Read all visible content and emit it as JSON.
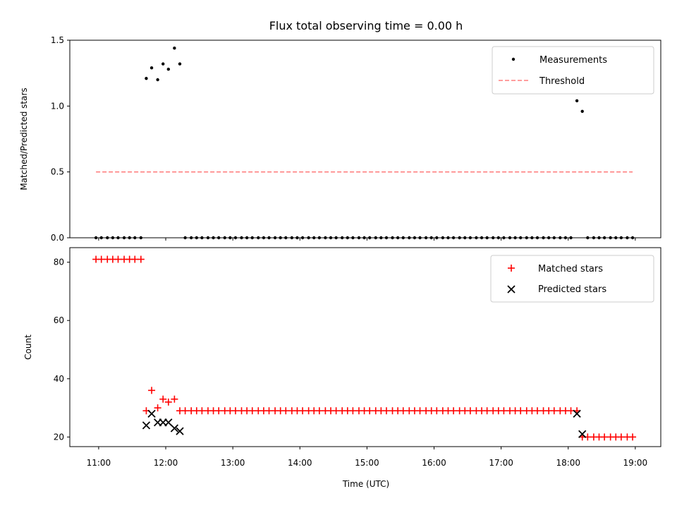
{
  "chart_data": [
    {
      "type": "scatter",
      "title": "Flux total observing time = 0.00 h",
      "xlabel": "",
      "ylabel": "Matched/Predicted stars",
      "xlim": [
        10.57,
        19.38
      ],
      "ylim": [
        0.0,
        1.5
      ],
      "yticks": [
        0.0,
        0.5,
        1.0,
        1.5
      ],
      "ytick_labels": [
        "0.0",
        "0.5",
        "1.0",
        "1.5"
      ],
      "legend": {
        "placement": "top-right"
      },
      "series": [
        {
          "name": "Measurements",
          "marker": "dot",
          "color": "#000000",
          "x": [
            10.96,
            11.04,
            11.13,
            11.21,
            11.29,
            11.38,
            11.46,
            11.54,
            11.63,
            11.71,
            11.79,
            11.88,
            11.96,
            12.04,
            12.13,
            12.21,
            12.29,
            12.38,
            12.46,
            12.54,
            12.63,
            12.71,
            12.79,
            12.88,
            12.96,
            13.04,
            13.13,
            13.21,
            13.29,
            13.38,
            13.46,
            13.54,
            13.63,
            13.71,
            13.79,
            13.88,
            13.96,
            14.04,
            14.13,
            14.21,
            14.29,
            14.38,
            14.46,
            14.54,
            14.63,
            14.71,
            14.79,
            14.88,
            14.96,
            15.04,
            15.13,
            15.21,
            15.29,
            15.38,
            15.46,
            15.54,
            15.63,
            15.71,
            15.79,
            15.88,
            15.96,
            16.04,
            16.13,
            16.21,
            16.29,
            16.38,
            16.46,
            16.54,
            16.63,
            16.71,
            16.79,
            16.88,
            16.96,
            17.04,
            17.13,
            17.21,
            17.29,
            17.38,
            17.46,
            17.54,
            17.63,
            17.71,
            17.79,
            17.88,
            17.96,
            18.04,
            18.13,
            18.21,
            18.29,
            18.38,
            18.46,
            18.54,
            18.63,
            18.71,
            18.79,
            18.88,
            18.96
          ],
          "y": [
            0,
            0,
            0,
            0,
            0,
            0,
            0,
            0,
            0,
            1.21,
            1.29,
            1.2,
            1.32,
            1.28,
            1.44,
            1.32,
            0,
            0,
            0,
            0,
            0,
            0,
            0,
            0,
            0,
            0,
            0,
            0,
            0,
            0,
            0,
            0,
            0,
            0,
            0,
            0,
            0,
            0,
            0,
            0,
            0,
            0,
            0,
            0,
            0,
            0,
            0,
            0,
            0,
            0,
            0,
            0,
            0,
            0,
            0,
            0,
            0,
            0,
            0,
            0,
            0,
            0,
            0,
            0,
            0,
            0,
            0,
            0,
            0,
            0,
            0,
            0,
            0,
            0,
            0,
            0,
            0,
            0,
            0,
            0,
            0,
            0,
            0,
            0,
            0,
            0,
            1.04,
            0.96,
            0,
            0,
            0,
            0,
            0,
            0,
            0,
            0,
            0
          ]
        },
        {
          "name": "Threshold",
          "marker": "dashed-line",
          "color": "#ff7f7f",
          "x": [
            10.96,
            18.96
          ],
          "y": [
            0.5,
            0.5
          ]
        }
      ]
    },
    {
      "type": "scatter",
      "title": "",
      "xlabel": "Time (UTC)",
      "ylabel": "Count",
      "xlim": [
        10.57,
        19.38
      ],
      "ylim": [
        16.7,
        85.0
      ],
      "xticks": [
        11,
        12,
        13,
        14,
        15,
        16,
        17,
        18,
        19
      ],
      "xtick_labels": [
        "11:00",
        "12:00",
        "13:00",
        "14:00",
        "15:00",
        "16:00",
        "17:00",
        "18:00",
        "19:00"
      ],
      "yticks": [
        20,
        40,
        60,
        80
      ],
      "ytick_labels": [
        "20",
        "40",
        "60",
        "80"
      ],
      "legend": {
        "placement": "top-right"
      },
      "series": [
        {
          "name": "Matched stars",
          "marker": "plus",
          "color": "#ff0000",
          "x": [
            10.96,
            11.04,
            11.13,
            11.21,
            11.29,
            11.38,
            11.46,
            11.54,
            11.63,
            11.71,
            11.79,
            11.88,
            11.96,
            12.04,
            12.13,
            12.21,
            12.29,
            12.38,
            12.46,
            12.54,
            12.63,
            12.71,
            12.79,
            12.88,
            12.96,
            13.04,
            13.13,
            13.21,
            13.29,
            13.38,
            13.46,
            13.54,
            13.63,
            13.71,
            13.79,
            13.88,
            13.96,
            14.04,
            14.13,
            14.21,
            14.29,
            14.38,
            14.46,
            14.54,
            14.63,
            14.71,
            14.79,
            14.88,
            14.96,
            15.04,
            15.13,
            15.21,
            15.29,
            15.38,
            15.46,
            15.54,
            15.63,
            15.71,
            15.79,
            15.88,
            15.96,
            16.04,
            16.13,
            16.21,
            16.29,
            16.38,
            16.46,
            16.54,
            16.63,
            16.71,
            16.79,
            16.88,
            16.96,
            17.04,
            17.13,
            17.21,
            17.29,
            17.38,
            17.46,
            17.54,
            17.63,
            17.71,
            17.79,
            17.88,
            17.96,
            18.04,
            18.13,
            18.21,
            18.29,
            18.38,
            18.46,
            18.54,
            18.63,
            18.71,
            18.79,
            18.88,
            18.96
          ],
          "y": [
            81,
            81,
            81,
            81,
            81,
            81,
            81,
            81,
            81,
            29,
            36,
            30,
            33,
            32,
            33,
            29,
            29,
            29,
            29,
            29,
            29,
            29,
            29,
            29,
            29,
            29,
            29,
            29,
            29,
            29,
            29,
            29,
            29,
            29,
            29,
            29,
            29,
            29,
            29,
            29,
            29,
            29,
            29,
            29,
            29,
            29,
            29,
            29,
            29,
            29,
            29,
            29,
            29,
            29,
            29,
            29,
            29,
            29,
            29,
            29,
            29,
            29,
            29,
            29,
            29,
            29,
            29,
            29,
            29,
            29,
            29,
            29,
            29,
            29,
            29,
            29,
            29,
            29,
            29,
            29,
            29,
            29,
            29,
            29,
            29,
            29,
            29,
            20,
            20,
            20,
            20,
            20,
            20,
            20,
            20,
            20,
            20
          ]
        },
        {
          "name": "Predicted stars",
          "marker": "x",
          "color": "#000000",
          "x": [
            11.71,
            11.79,
            11.88,
            11.96,
            12.04,
            12.13,
            12.21,
            18.13,
            18.21
          ],
          "y": [
            24,
            28,
            25,
            25,
            25,
            23,
            22,
            28,
            21
          ]
        }
      ]
    }
  ]
}
